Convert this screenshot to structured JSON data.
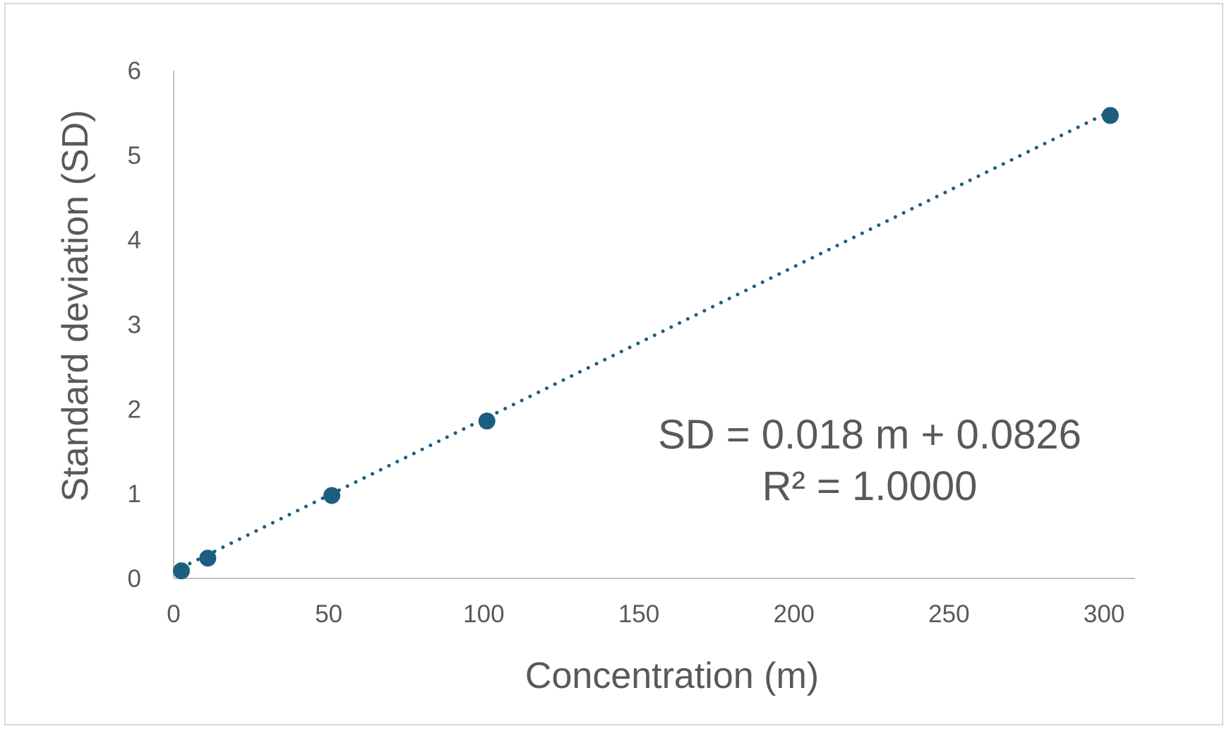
{
  "chart_data": {
    "type": "scatter",
    "xlabel": "Concentration (m)",
    "ylabel": "Standard deviation (SD)",
    "xlim": [
      0,
      310
    ],
    "ylim": [
      0,
      6
    ],
    "x_ticks": [
      0,
      50,
      100,
      150,
      200,
      250,
      300
    ],
    "y_ticks": [
      0,
      1,
      2,
      3,
      4,
      5,
      6
    ],
    "grid": false,
    "series": [
      {
        "x": [
          2.5,
          11,
          51,
          101,
          302
        ],
        "y": [
          0.09,
          0.24,
          0.98,
          1.86,
          5.47
        ],
        "color": "#1b5e80"
      }
    ],
    "trendline": {
      "type": "linear",
      "slope": 0.018,
      "intercept": 0.0826,
      "style": "dotted",
      "color": "#1b5e80"
    },
    "annotations": {
      "equation": "SD = 0.018 m + 0.0826",
      "r_squared": "R² = 1.0000"
    }
  }
}
